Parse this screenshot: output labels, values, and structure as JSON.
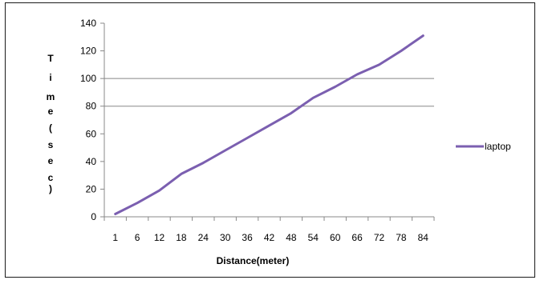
{
  "chart_data": {
    "type": "line",
    "x": [
      1,
      6,
      12,
      18,
      24,
      30,
      36,
      42,
      48,
      54,
      60,
      66,
      72,
      78,
      84
    ],
    "series": [
      {
        "name": "laptop",
        "color": "#7b5fb0",
        "values": [
          2,
          10,
          19,
          31,
          39,
          48,
          57,
          66,
          75,
          86,
          94,
          103,
          110,
          120,
          131
        ]
      }
    ],
    "title": "",
    "xlabel": "Distance(meter)",
    "ylabel": "Time(sec)",
    "ylabel_chars": [
      "T",
      "i",
      "m",
      "e",
      "(",
      "s",
      "e",
      "c",
      ")"
    ],
    "x_tick_labels": [
      "1",
      "6",
      "12",
      "18",
      "24",
      "30",
      "36",
      "42",
      "48",
      "54",
      "60",
      "66",
      "72",
      "78",
      "84"
    ],
    "y_ticks": [
      0,
      20,
      40,
      60,
      80,
      100,
      120,
      140
    ],
    "y_tick_labels": [
      "0",
      "20",
      "40",
      "60",
      "80",
      "100",
      "120",
      "140"
    ],
    "ylim": [
      0,
      140
    ],
    "gridlines_at": [
      80,
      100
    ],
    "legend_position": "right",
    "grid_color": "#888888",
    "axis_color": "#888888"
  }
}
